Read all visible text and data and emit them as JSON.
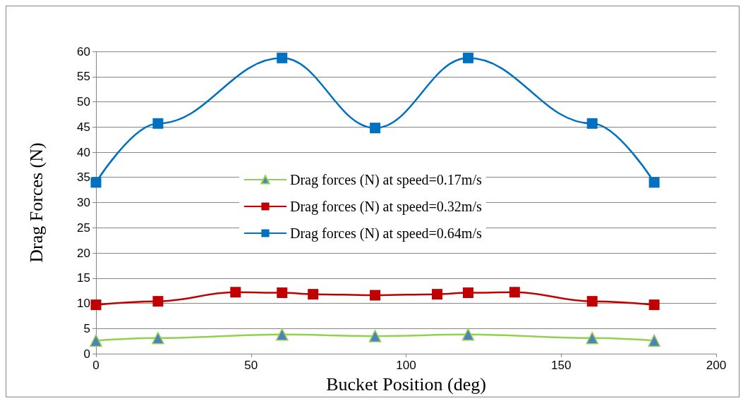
{
  "chart_data": {
    "type": "line",
    "xlabel": "Bucket Position (deg)",
    "ylabel": "Drag Forces (N)",
    "xlim": [
      0,
      200
    ],
    "xticks": [
      0,
      50,
      100,
      150,
      200
    ],
    "ylim": [
      0,
      60
    ],
    "yticks": [
      0,
      5,
      10,
      15,
      20,
      25,
      30,
      35,
      40,
      45,
      50,
      55,
      60
    ],
    "grid": "y",
    "legend": "center",
    "line_style": "solid",
    "series": [
      {
        "name": "Drag forces (N) at speed=0.17m/s",
        "color": "#92d050",
        "marker": "triangle",
        "x": [
          0,
          20,
          60,
          90,
          120,
          160,
          180
        ],
        "values": [
          2.6,
          3.1,
          3.8,
          3.5,
          3.8,
          3.1,
          2.6
        ]
      },
      {
        "name": "Drag forces (N) at speed=0.32m/s",
        "color": "#c00000",
        "marker": "square",
        "x": [
          0,
          20,
          45,
          60,
          70,
          90,
          110,
          120,
          135,
          160,
          180
        ],
        "values": [
          9.7,
          10.4,
          12.2,
          12.1,
          11.8,
          11.6,
          11.8,
          12.1,
          12.2,
          10.4,
          9.7
        ]
      },
      {
        "name": "Drag forces (N) at speed=0.64m/s",
        "color": "#0070c0",
        "marker": "square",
        "x": [
          0,
          20,
          60,
          90,
          120,
          160,
          180
        ],
        "values": [
          34,
          45.7,
          58.7,
          44.8,
          58.7,
          45.7,
          34
        ]
      }
    ]
  }
}
